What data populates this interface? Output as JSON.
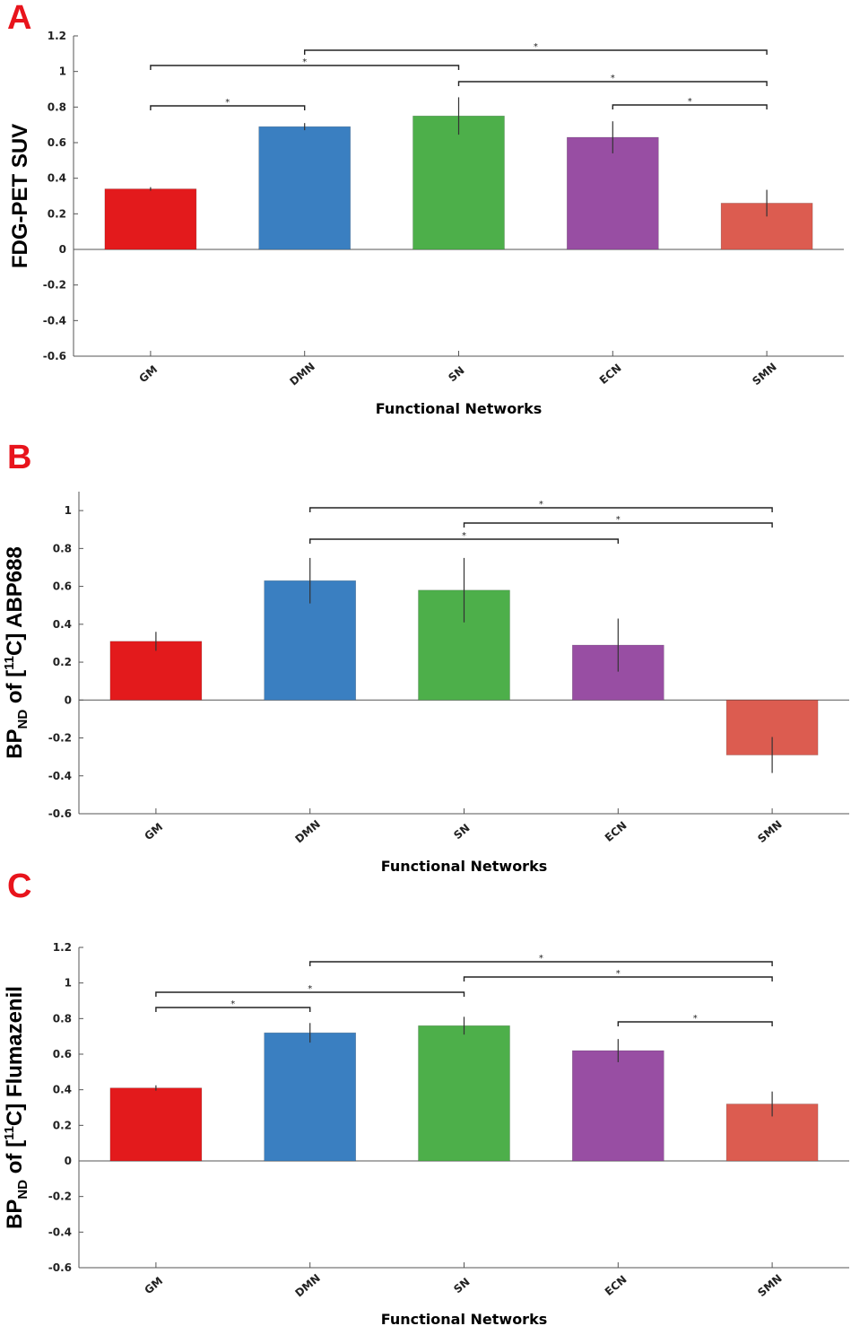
{
  "chart_data": [
    {
      "type": "bar",
      "panel": "A",
      "ylabel": "FDG-PET SUV",
      "xlabel": "Functional Networks",
      "categories": [
        "GM",
        "DMN",
        "SN",
        "ECN",
        "SMN"
      ],
      "values": [
        0.34,
        0.69,
        0.75,
        0.63,
        0.26
      ],
      "errors": [
        0.01,
        0.02,
        0.105,
        0.09,
        0.075
      ],
      "colors": [
        "#e31a1c",
        "#3a7fc1",
        "#4daf4a",
        "#984ea3",
        "#dc5c50"
      ],
      "ylim": [
        -0.6,
        1.2
      ],
      "yticks": [
        "1.2",
        "1",
        "0.8",
        "0.6",
        "0.4",
        "0.2",
        "0",
        "-0.2",
        "-0.4",
        "-0.6"
      ],
      "grid": false,
      "significance": [
        {
          "from": "DMN",
          "to": "SMN",
          "label": "*"
        },
        {
          "from": "GM",
          "to": "SN",
          "label": "*"
        },
        {
          "from": "SN",
          "to": "SMN",
          "label": "*"
        },
        {
          "from": "GM",
          "to": "DMN",
          "label": "*"
        },
        {
          "from": "ECN",
          "to": "SMN",
          "label": "*"
        }
      ]
    },
    {
      "type": "bar",
      "panel": "B",
      "ylabel_parts": {
        "pre": "BP",
        "sub": "ND",
        "mid": " of [",
        "sup": "11",
        "post": "C] ABP688"
      },
      "xlabel": "Functional Networks",
      "categories": [
        "GM",
        "DMN",
        "SN",
        "ECN",
        "SMN"
      ],
      "values": [
        0.31,
        0.63,
        0.58,
        0.29,
        -0.29
      ],
      "errors": [
        0.05,
        0.12,
        0.17,
        0.14,
        0.095
      ],
      "colors": [
        "#e31a1c",
        "#3a7fc1",
        "#4daf4a",
        "#984ea3",
        "#dc5c50"
      ],
      "ylim": [
        -0.6,
        1.1
      ],
      "yticks": [
        "1",
        "0.8",
        "0.6",
        "0.4",
        "0.2",
        "0",
        "-0.2",
        "-0.4",
        "-0.6"
      ],
      "grid": false,
      "significance": [
        {
          "from": "DMN",
          "to": "SMN",
          "label": "*"
        },
        {
          "from": "SN",
          "to": "SMN",
          "label": "*"
        },
        {
          "from": "DMN",
          "to": "ECN",
          "label": "*"
        }
      ]
    },
    {
      "type": "bar",
      "panel": "C",
      "ylabel_parts": {
        "pre": "BP",
        "sub": "ND",
        "mid": " of [",
        "sup": "11",
        "post": "C] Flumazenil"
      },
      "xlabel": "Functional Networks",
      "categories": [
        "GM",
        "DMN",
        "SN",
        "ECN",
        "SMN"
      ],
      "values": [
        0.41,
        0.72,
        0.76,
        0.62,
        0.32
      ],
      "errors": [
        0.015,
        0.055,
        0.05,
        0.065,
        0.07
      ],
      "colors": [
        "#e31a1c",
        "#3a7fc1",
        "#4daf4a",
        "#984ea3",
        "#dc5c50"
      ],
      "ylim": [
        -0.6,
        1.2
      ],
      "yticks": [
        "1.2",
        "1",
        "0.8",
        "0.6",
        "0.4",
        "0.2",
        "0",
        "-0.2",
        "-0.4",
        "-0.6"
      ],
      "grid": false,
      "significance": [
        {
          "from": "DMN",
          "to": "SMN",
          "label": "*"
        },
        {
          "from": "SN",
          "to": "SMN",
          "label": "*"
        },
        {
          "from": "GM",
          "to": "SN",
          "label": "*"
        },
        {
          "from": "GM",
          "to": "DMN",
          "label": "*"
        },
        {
          "from": "ECN",
          "to": "SMN",
          "label": "*"
        }
      ]
    }
  ],
  "panel_letter_color": "#e8141c"
}
